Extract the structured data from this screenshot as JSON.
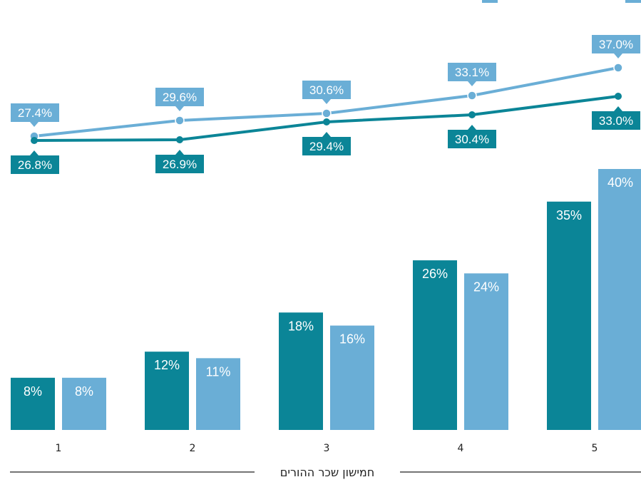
{
  "chart_data": {
    "type": "bar",
    "xlabel": "חמישון שכר ההורים",
    "categories": [
      "1",
      "2",
      "3",
      "4",
      "5"
    ],
    "bar_series": [
      {
        "values": [
          8,
          12,
          18,
          26,
          35
        ],
        "labels": [
          "8%",
          "12%",
          "18%",
          "26%",
          "35%"
        ],
        "color": "#0b8597"
      },
      {
        "values": [
          8,
          11,
          16,
          24,
          40
        ],
        "labels": [
          "8%",
          "11%",
          "16%",
          "24%",
          "40%"
        ],
        "color": "#6aaed6"
      }
    ],
    "line_series": [
      {
        "values": [
          27.4,
          29.6,
          30.6,
          33.1,
          37.0
        ],
        "labels": [
          "27.4%",
          "29.6%",
          "30.6%",
          "33.1%",
          "37.0%"
        ],
        "color": "#6aaed6"
      },
      {
        "values": [
          26.8,
          26.9,
          29.4,
          30.4,
          33.0
        ],
        "labels": [
          "26.8%",
          "26.9%",
          "29.4%",
          "30.4%",
          "33.0%"
        ],
        "color": "#0b8597"
      }
    ],
    "bar_ylim": [
      0,
      40
    ],
    "line_ylim": [
      26.8,
      37.0
    ],
    "grid": false,
    "legend": "top-right"
  },
  "colors": {
    "dark": "#0b8597",
    "light": "#6aaed6"
  }
}
